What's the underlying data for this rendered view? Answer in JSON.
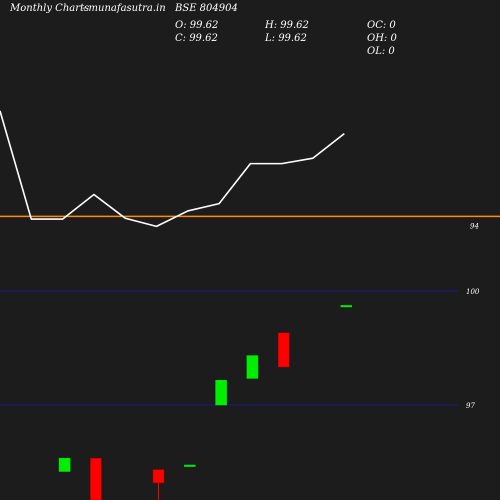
{
  "header": {
    "brand": "Monthly Charts",
    "site": "- munafasutra.in",
    "symbol": "BSE 804904",
    "open": "O: 99.62",
    "close": "C: 99.62",
    "high": "H: 99.62",
    "low": "L: 99.62",
    "oc": "OC: 0",
    "oh": "OH: 0",
    "ol": "OL: 0"
  },
  "colors": {
    "background": "#1c1c1c",
    "line": "#ffffff",
    "reference_line": "#ff8c00",
    "grid": "#1a1a8c",
    "bull": "#00ee00",
    "bear": "#ff0000",
    "text": "#ffffff"
  },
  "chart_data": [
    {
      "type": "line",
      "x": [
        0,
        1,
        2,
        3,
        4,
        5,
        6,
        7,
        8,
        9,
        10,
        11
      ],
      "values": [
        99.8,
        93.85,
        93.85,
        95.2,
        93.9,
        93.45,
        94.3,
        94.7,
        96.9,
        96.9,
        97.2,
        98.55
      ],
      "reference_line": 94,
      "ylim": [
        90.5,
        101.5
      ],
      "tick_labels": [
        "94"
      ]
    },
    {
      "type": "candlestick",
      "x": [
        0,
        1,
        2,
        3,
        4,
        5,
        6,
        7,
        8,
        9,
        10,
        11
      ],
      "candles": [
        null,
        null,
        {
          "open": 95.25,
          "close": 95.6,
          "high": 95.6,
          "low": 95.25
        },
        {
          "open": 95.6,
          "close": 94.5,
          "high": 95.6,
          "low": 94.5
        },
        null,
        {
          "open": 95.3,
          "close": 94.95,
          "high": 95.3,
          "low": 94.5
        },
        {
          "open": 95.42,
          "close": 95.42,
          "high": 95.42,
          "low": 95.42
        },
        {
          "open": 97.0,
          "close": 97.65,
          "high": 97.65,
          "low": 97.0
        },
        {
          "open": 97.7,
          "close": 98.3,
          "high": 98.3,
          "low": 97.7
        },
        {
          "open": 98.9,
          "close": 98.0,
          "high": 98.9,
          "low": 98.0
        },
        null,
        {
          "open": 99.62,
          "close": 99.62,
          "high": 99.62,
          "low": 99.62
        }
      ],
      "gridlines": [
        100,
        97
      ],
      "tick_labels": [
        "100",
        "97"
      ],
      "ylim": [
        94.5,
        100.5
      ]
    }
  ]
}
